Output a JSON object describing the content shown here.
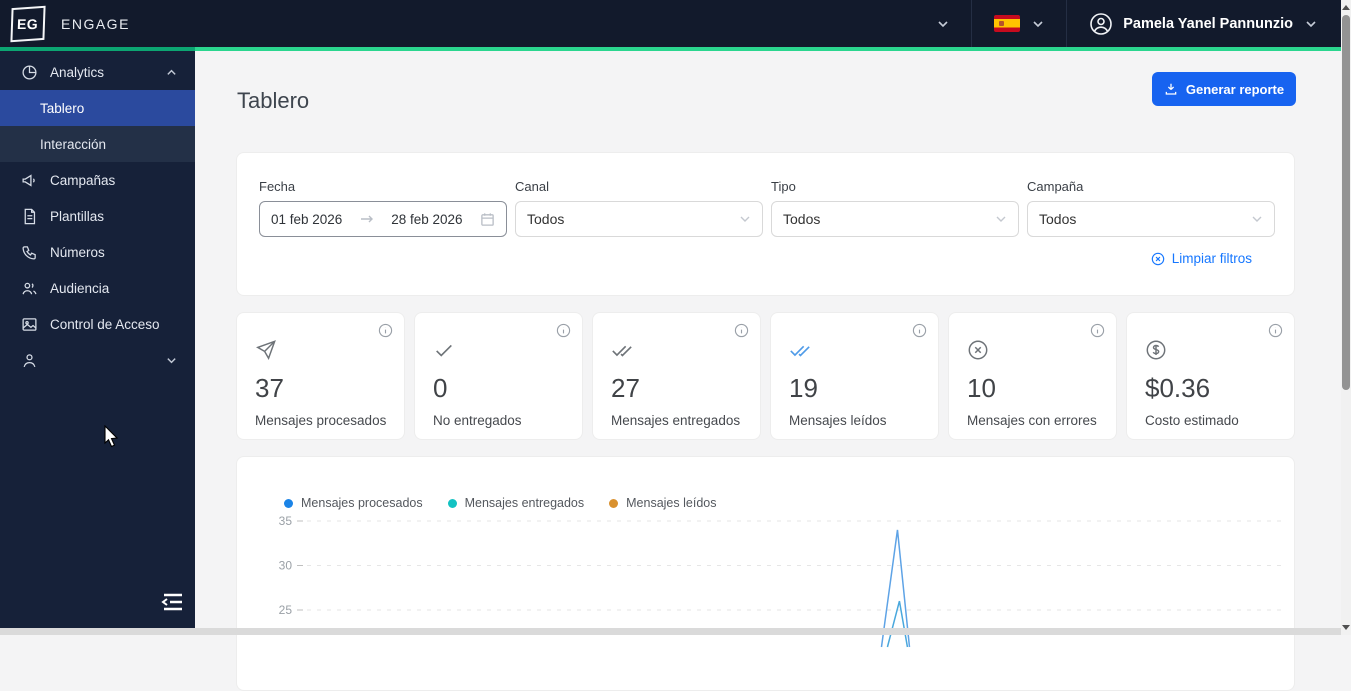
{
  "topbar": {
    "monogram": "EG",
    "brand": "ENGAGE",
    "user_name": "Pamela Yanel Pannunzio"
  },
  "sidebar": {
    "items": [
      {
        "label": "Analytics",
        "icon": "pie-chart",
        "expanded": true
      },
      {
        "label": "Tablero",
        "selected": true
      },
      {
        "label": "Interacción"
      },
      {
        "label": "Campañas",
        "icon": "megaphone"
      },
      {
        "label": "Plantillas",
        "icon": "document"
      },
      {
        "label": "Números",
        "icon": "phone"
      },
      {
        "label": "Audiencia",
        "icon": "people"
      },
      {
        "label": "Control de Acceso",
        "icon": "person",
        "collapsed": true
      }
    ]
  },
  "page": {
    "title": "Tablero",
    "report_button": "Generar reporte"
  },
  "filters": {
    "date_label": "Fecha",
    "date_from": "01 feb 2026",
    "date_to": "28 feb 2026",
    "channel_label": "Canal",
    "channel_value": "Todos",
    "type_label": "Tipo",
    "type_value": "Todos",
    "campaign_label": "Campaña",
    "campaign_value": "Todos",
    "clear_label": "Limpiar filtros"
  },
  "stats": [
    {
      "value": "37",
      "label": "Mensajes procesados",
      "icon": "send"
    },
    {
      "value": "0",
      "label": "No entregados",
      "icon": "check"
    },
    {
      "value": "27",
      "label": "Mensajes entregados",
      "icon": "double-check"
    },
    {
      "value": "19",
      "label": "Mensajes leídos",
      "icon": "double-check-blue"
    },
    {
      "value": "10",
      "label": "Mensajes con errores",
      "icon": "close-circle"
    },
    {
      "value": "$0.36",
      "label": "Costo estimado",
      "icon": "dollar-circle"
    }
  ],
  "chart_data": {
    "type": "line",
    "title": "",
    "grid": "dashed-horizontal",
    "legend_position": "top-left",
    "yticks_visible": [
      35,
      30,
      25
    ],
    "visible_y_window": [
      22,
      36
    ],
    "series": [
      {
        "name": "Mensajes procesados",
        "legend_color": "#1B84E7",
        "line_color": "#5EA3E6",
        "visible_peak": {
          "value": 34,
          "x_fraction": 0.605
        }
      },
      {
        "name": "Mensajes entregados",
        "legend_color": "#13C2C2",
        "line_color": "#49A8DD",
        "visible_peak": {
          "value": 26,
          "x_fraction": 0.607
        }
      },
      {
        "name": "Mensajes leídos",
        "legend_color": "#D9912F",
        "line_color": "#D9912F",
        "visible_peak": null
      }
    ],
    "note_visible": "chart clipped by viewport below y=22; x axis labels not visible"
  }
}
